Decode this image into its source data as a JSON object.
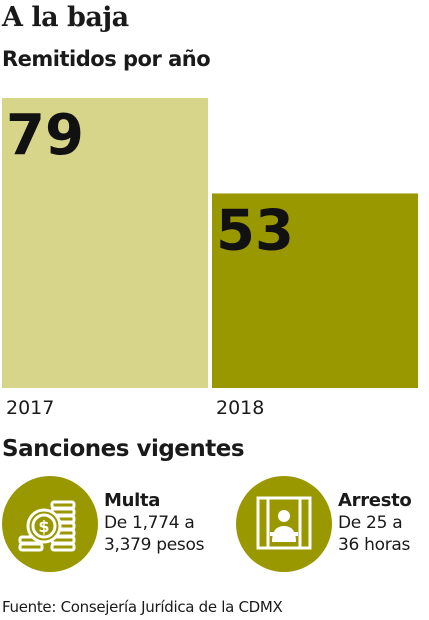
{
  "header": {
    "title": "A la baja",
    "subtitle": "Remitidos por año"
  },
  "chart_data": {
    "type": "bar",
    "categories": [
      "2017",
      "2018"
    ],
    "values": [
      79,
      53
    ],
    "title": "",
    "xlabel": "",
    "ylabel": "",
    "ylim": [
      0,
      79
    ],
    "grid": false,
    "colors": [
      "#d7d58a",
      "#9a9800"
    ]
  },
  "sanctions": {
    "title": "Sanciones vigentes",
    "fine": {
      "icon": "coins-icon",
      "heading": "Multa",
      "line1": "De 1,774 a",
      "line2": "3,379 pesos"
    },
    "arrest": {
      "icon": "jail-icon",
      "heading": "Arresto",
      "line1": "De 25 a",
      "line2": "36 horas"
    },
    "icon_color": "#9a9800"
  },
  "footer": {
    "source": "Fuente: Consejería Jurídica de la CDMX"
  }
}
